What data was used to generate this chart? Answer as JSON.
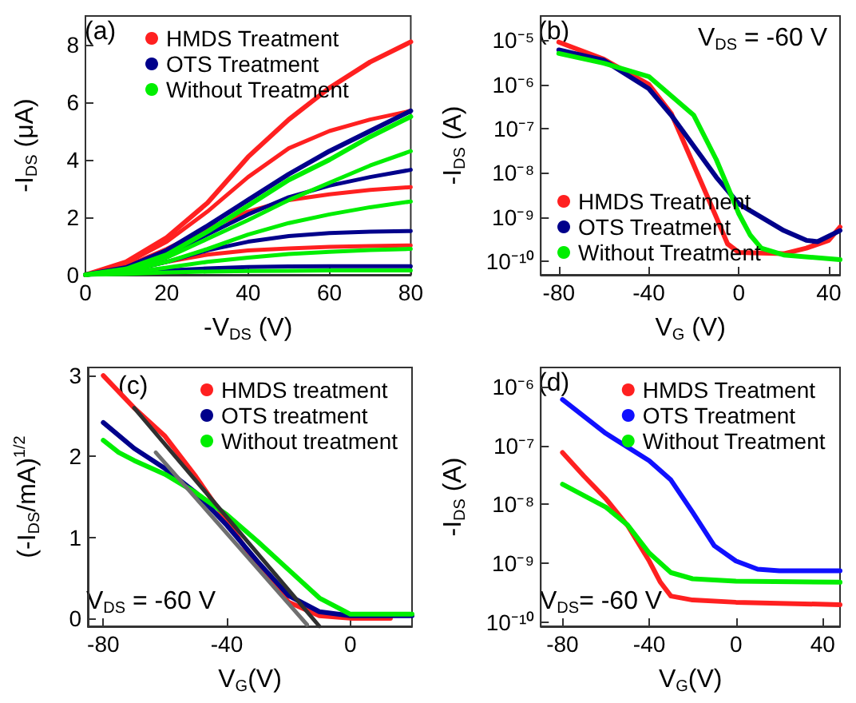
{
  "chart_data": [
    {
      "type": "line",
      "xlabel": "-V$_{DS}$ (V)",
      "ylabel": "-I$_{DS}$ (μA)",
      "annotations": [
        "(a)"
      ],
      "legend": "top",
      "xlim": [
        0,
        80
      ],
      "ylim": [
        0,
        9
      ],
      "xticks": [
        0,
        20,
        40,
        60,
        80
      ],
      "yticks": [
        0,
        2,
        4,
        6,
        8
      ],
      "series": [
        {
          "name": "HMDS Treatment",
          "color": "#ff2020",
          "x": [
            0,
            10,
            20,
            30,
            40,
            50,
            60,
            70,
            80
          ],
          "values": [
            0,
            0.45,
            1.3,
            2.5,
            4.1,
            5.4,
            6.5,
            7.4,
            8.1
          ]
        },
        {
          "color": "#ff2020",
          "x": [
            0,
            10,
            20,
            30,
            40,
            50,
            60,
            70,
            80
          ],
          "values": [
            0,
            0.4,
            1.15,
            2.2,
            3.4,
            4.4,
            5.0,
            5.4,
            5.7
          ]
        },
        {
          "color": "#ff2020",
          "x": [
            0,
            10,
            20,
            30,
            40,
            50,
            60,
            70,
            80
          ],
          "values": [
            0,
            0.3,
            0.9,
            1.6,
            2.2,
            2.6,
            2.8,
            2.95,
            3.05
          ]
        },
        {
          "color": "#ff2020",
          "x": [
            0,
            10,
            20,
            30,
            40,
            50,
            60,
            70,
            80
          ],
          "values": [
            0,
            0.15,
            0.45,
            0.7,
            0.85,
            0.92,
            0.97,
            1.0,
            1.02
          ]
        },
        {
          "name": "OTS Treatment",
          "color": "#00008b",
          "x": [
            0,
            10,
            20,
            30,
            40,
            50,
            60,
            70,
            80
          ],
          "values": [
            0,
            0.25,
            0.85,
            1.7,
            2.6,
            3.5,
            4.3,
            5.0,
            5.7
          ]
        },
        {
          "color": "#00008b",
          "x": [
            0,
            10,
            20,
            30,
            40,
            50,
            60,
            70,
            80
          ],
          "values": [
            0,
            0.2,
            0.7,
            1.4,
            2.1,
            2.7,
            3.1,
            3.4,
            3.65
          ]
        },
        {
          "color": "#00008b",
          "x": [
            0,
            10,
            20,
            30,
            40,
            50,
            60,
            70,
            80
          ],
          "values": [
            0,
            0.12,
            0.45,
            0.85,
            1.15,
            1.35,
            1.45,
            1.5,
            1.52
          ]
        },
        {
          "color": "#00008b",
          "x": [
            0,
            10,
            20,
            30,
            40,
            50,
            60,
            70,
            80
          ],
          "values": [
            0,
            0.05,
            0.15,
            0.22,
            0.27,
            0.29,
            0.3,
            0.3,
            0.3
          ]
        },
        {
          "name": "Without Treatment",
          "color": "#00ee00",
          "x": [
            0,
            10,
            20,
            30,
            40,
            50,
            60,
            70,
            80
          ],
          "values": [
            0,
            0.2,
            0.7,
            1.5,
            2.4,
            3.3,
            4.0,
            4.8,
            5.5
          ]
        },
        {
          "color": "#00ee00",
          "x": [
            0,
            10,
            20,
            30,
            40,
            50,
            60,
            70,
            80
          ],
          "values": [
            0,
            0.18,
            0.6,
            1.25,
            1.9,
            2.6,
            3.2,
            3.8,
            4.3
          ]
        },
        {
          "color": "#00ee00",
          "x": [
            0,
            10,
            20,
            30,
            40,
            50,
            60,
            70,
            80
          ],
          "values": [
            0,
            0.12,
            0.45,
            0.9,
            1.4,
            1.8,
            2.1,
            2.35,
            2.55
          ]
        },
        {
          "color": "#00ee00",
          "x": [
            0,
            10,
            20,
            30,
            40,
            50,
            60,
            70,
            80
          ],
          "values": [
            0,
            0.07,
            0.25,
            0.45,
            0.6,
            0.72,
            0.8,
            0.86,
            0.9
          ]
        },
        {
          "color": "#00ee00",
          "x": [
            0,
            10,
            20,
            30,
            40,
            50,
            60,
            70,
            80
          ],
          "values": [
            0,
            0.03,
            0.08,
            0.11,
            0.13,
            0.14,
            0.15,
            0.15,
            0.15
          ]
        }
      ]
    },
    {
      "type": "line",
      "xlabel": "V$_{G}$ (V)",
      "ylabel": "-I$_{DS}$ (A)",
      "annotations": [
        "(b)",
        "V$_{DS}$ = -60 V"
      ],
      "legend": "bottom left",
      "log": "y",
      "xlim": [
        -88,
        45
      ],
      "ylim": [
        5e-11,
        3.5e-05
      ],
      "xticks": [
        -80,
        -40,
        0,
        40
      ],
      "yticks": [
        {
          "value": 1e-10,
          "label": "10⁻¹⁰"
        },
        {
          "value": 1e-09,
          "label": "10⁻⁹"
        },
        {
          "value": 1e-08,
          "label": "10⁻⁸"
        },
        {
          "value": 1e-07,
          "label": "10⁻⁷"
        },
        {
          "value": 1e-06,
          "label": "10⁻⁶"
        },
        {
          "value": 1e-05,
          "label": "10⁻⁵"
        }
      ],
      "series": [
        {
          "name": "HMDS Treatment",
          "color": "#ff2020",
          "x": [
            -80,
            -60,
            -40,
            -30,
            -20,
            -10,
            -5,
            0,
            20,
            30,
            40,
            45
          ],
          "values": [
            9e-06,
            3.7e-06,
            1e-06,
            2.2e-07,
            1.5e-08,
            1e-09,
            2.5e-10,
            1.6e-10,
            1.5e-10,
            2e-10,
            3e-10,
            6e-10
          ]
        },
        {
          "name": "OTS Treatment",
          "color": "#00008b",
          "x": [
            -80,
            -60,
            -40,
            -30,
            -20,
            -10,
            0,
            10,
            20,
            30,
            35,
            45
          ],
          "values": [
            6e-06,
            3.5e-06,
            8e-07,
            2e-07,
            4e-08,
            8e-09,
            2e-09,
            1e-09,
            5e-10,
            3e-10,
            2.8e-10,
            5e-10
          ]
        },
        {
          "name": "Without Treatment",
          "color": "#00ee00",
          "x": [
            -80,
            -60,
            -40,
            -20,
            -10,
            -5,
            0,
            5,
            10,
            20,
            45
          ],
          "values": [
            5e-06,
            3e-06,
            1.5e-06,
            2e-07,
            2e-08,
            5e-09,
            1.2e-09,
            4e-10,
            2e-10,
            1.4e-10,
            1.1e-10
          ]
        }
      ]
    },
    {
      "type": "line",
      "xlabel": "V$_{G}$(V)",
      "ylabel": "(-I$_{DS}$/mA)$^{1/2}$",
      "annotations": [
        "(c)",
        "V$_{DS}$ = -60 V"
      ],
      "legend": "top right",
      "xlim": [
        -85,
        20
      ],
      "ylim": [
        -0.1,
        3.1
      ],
      "xticks": [
        -80,
        -40,
        0
      ],
      "yticks": [
        0,
        1,
        2,
        3
      ],
      "series": [
        {
          "name": "HMDS treatment",
          "color": "#ff2020",
          "x": [
            -80,
            -70,
            -60,
            -50,
            -40,
            -30,
            -20,
            -10,
            0,
            13
          ],
          "values": [
            3.0,
            2.6,
            2.25,
            1.75,
            1.2,
            0.65,
            0.2,
            0.03,
            0,
            0
          ]
        },
        {
          "name": "OTS treatment",
          "color": "#00008b",
          "x": [
            -80,
            -70,
            -60,
            -50,
            -40,
            -30,
            -20,
            -10,
            0,
            20
          ],
          "values": [
            2.42,
            2.1,
            1.85,
            1.55,
            1.15,
            0.7,
            0.28,
            0.08,
            0.03,
            0.03
          ]
        },
        {
          "name": "Without treatment",
          "color": "#00ee00",
          "x": [
            -80,
            -75,
            -70,
            -60,
            -50,
            -40,
            -30,
            -20,
            -10,
            0,
            20
          ],
          "values": [
            2.2,
            2.05,
            1.95,
            1.78,
            1.55,
            1.28,
            0.95,
            0.6,
            0.25,
            0.05,
            0.05
          ]
        },
        {
          "color": "#707070",
          "x": [
            -63,
            -14
          ],
          "values": [
            2.05,
            -0.08
          ]
        },
        {
          "color": "#303030",
          "x": [
            -70,
            -10
          ],
          "values": [
            2.6,
            -0.1
          ]
        }
      ]
    },
    {
      "type": "line",
      "xlabel": "V$_{G}$(V)",
      "ylabel": "-I$_{DS}$ (A)",
      "annotations": [
        "(d)",
        "V$_{DS}$= -60 V"
      ],
      "legend": "top right",
      "log": "y",
      "xlim": [
        -90,
        48
      ],
      "ylim": [
        8.6e-11,
        2.1e-06
      ],
      "xticks": [
        -80,
        -40,
        0,
        40
      ],
      "yticks": [
        {
          "value": 1e-10,
          "label": "10⁻¹⁰"
        },
        {
          "value": 1e-09,
          "label": "10⁻⁹"
        },
        {
          "value": 1e-08,
          "label": "10⁻⁸"
        },
        {
          "value": 1e-07,
          "label": "10⁻⁷"
        },
        {
          "value": 1e-06,
          "label": "10⁻⁶"
        }
      ],
      "series": [
        {
          "name": "HMDS Treatment",
          "color": "#ff2020",
          "x": [
            -80,
            -70,
            -60,
            -50,
            -40,
            -35,
            -30,
            -20,
            0,
            48
          ],
          "values": [
            7.6e-08,
            3e-08,
            1.25e-08,
            4.4e-09,
            1.1e-09,
            4.9e-10,
            2.8e-10,
            2.4e-10,
            2.2e-10,
            2e-10
          ]
        },
        {
          "name": "OTS Treatment",
          "color": "#1010ff",
          "x": [
            -80,
            -60,
            -40,
            -30,
            -20,
            -10,
            0,
            10,
            20,
            48
          ],
          "values": [
            6e-07,
            1.6e-07,
            5.5e-08,
            2.6e-08,
            7.4e-09,
            2e-09,
            1.1e-09,
            8e-10,
            7.5e-10,
            7.5e-10
          ]
        },
        {
          "name": "Without Treatment",
          "color": "#00ee00",
          "x": [
            -80,
            -60,
            -50,
            -40,
            -30,
            -20,
            0,
            48
          ],
          "values": [
            2.2e-08,
            9e-09,
            4.5e-09,
            1.5e-09,
            7e-10,
            5.5e-10,
            5e-10,
            4.8e-10
          ]
        }
      ]
    }
  ]
}
